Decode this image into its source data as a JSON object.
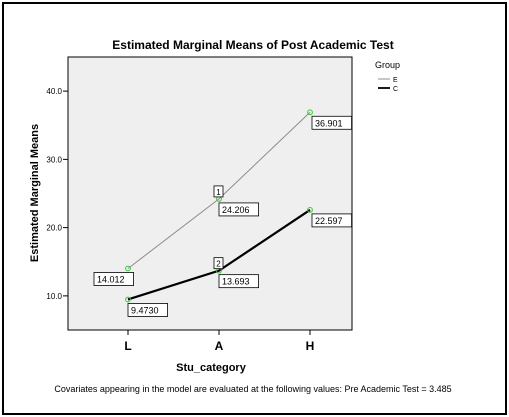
{
  "chart_data": {
    "type": "line",
    "title": "Estimated Marginal Means of Post Academic Test",
    "xlabel": "Stu_category",
    "ylabel": "Estimated Marginal Means",
    "categories": [
      "L",
      "A",
      "H"
    ],
    "ylim": [
      5,
      45
    ],
    "yticks": [
      10,
      20,
      30,
      40
    ],
    "ytick_labels": [
      "10.0",
      "20.0",
      "30.0",
      "40.0"
    ],
    "grid": false,
    "legend": {
      "title": "Group",
      "position": "top-right"
    },
    "series": [
      {
        "name": "E",
        "values": [
          14.012,
          24.206,
          36.901
        ],
        "value_labels": [
          "14.012",
          "24.206",
          "36.901"
        ],
        "color": "#8c8c8c",
        "line_weight": "thin"
      },
      {
        "name": "C",
        "values": [
          9.473,
          13.693,
          22.597
        ],
        "value_labels": [
          "9.4730",
          "13.693",
          "22.597"
        ],
        "color": "#000000",
        "line_weight": "thick"
      }
    ],
    "annotations": [
      {
        "text": "1",
        "series": "E",
        "category": "A"
      },
      {
        "text": "2",
        "series": "C",
        "category": "A"
      }
    ],
    "marker_color": "#37c837",
    "plot_background": "#efefef",
    "footnote": "Covariates appearing in the model are evaluated at the following values: Pre Academic Test = 3.485"
  }
}
